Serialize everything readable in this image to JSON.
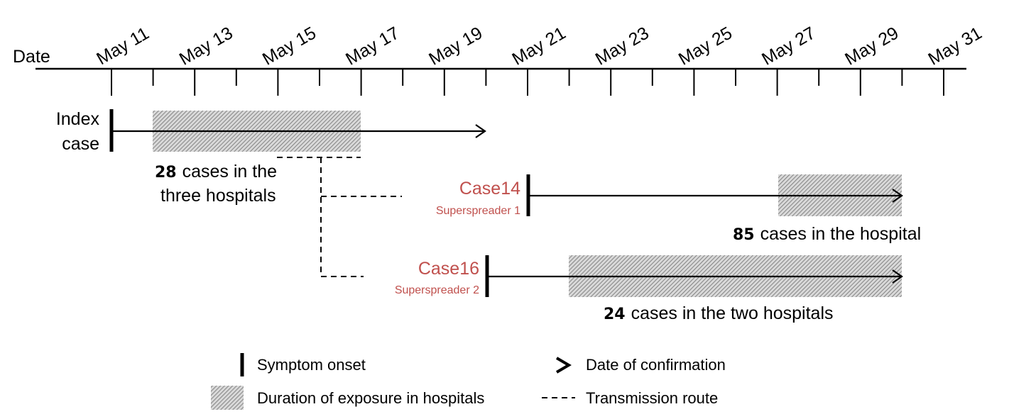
{
  "axis": {
    "label": "Date",
    "ticks": [
      "May 11",
      "May 13",
      "May 15",
      "May 17",
      "May 19",
      "May 21",
      "May 23",
      "May 25",
      "May 27",
      "May 29",
      "May 31"
    ]
  },
  "index_case": {
    "label_line1": "Index",
    "label_line2": "case",
    "count": "28",
    "note_line1": "cases in the",
    "note_line2": "three hospitals"
  },
  "case14": {
    "name": "Case14",
    "role": "Superspreader 1",
    "count": "85",
    "note": "cases in the hospital"
  },
  "case16": {
    "name": "Case16",
    "role": "Superspreader 2",
    "count": "24",
    "note": "cases in the two hospitals"
  },
  "legend": {
    "symptom_onset": "Symptom onset",
    "exposure": "Duration of exposure in hospitals",
    "confirmation": "Date of confirmation",
    "transmission": "Transmission route"
  },
  "colors": {
    "case_label": "#c0504d",
    "line": "#000000",
    "hatch_bg": "#d9d9d9",
    "hatch_line": "#7f7f7f"
  }
}
